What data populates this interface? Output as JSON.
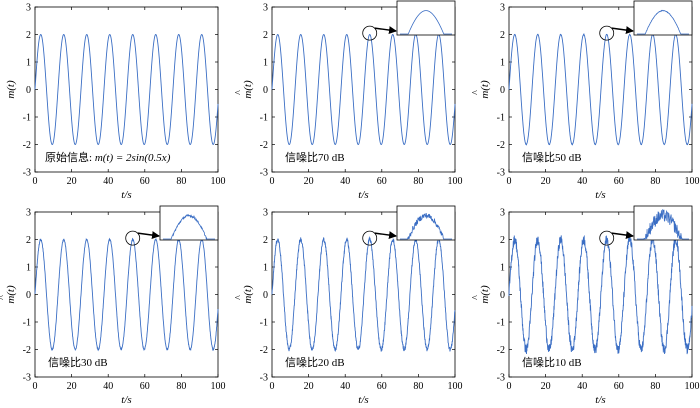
{
  "chart_data": [
    {
      "type": "line",
      "panel": "top-left",
      "ylabel": "m(t)",
      "xlabel": "t/s",
      "xlim": [
        0,
        100
      ],
      "ylim": [
        -3,
        3
      ],
      "xticks": [
        "0",
        "20",
        "40",
        "60",
        "80",
        "100"
      ],
      "yticks": [
        "3",
        "2",
        "1",
        "0",
        "-1",
        "-2",
        "-3"
      ],
      "annotation_prefix": "原始信息:",
      "annotation_formula": "m(t) = 2sin(0.5x)",
      "amplitude": 2,
      "angular_frequency": 0.5,
      "noise_level": 0,
      "series_color": "#3b6ec4",
      "has_inset": false
    },
    {
      "type": "line",
      "panel": "top-middle",
      "ylabel": "m(t)",
      "ylabel_hat": "^",
      "xlabel": "t/s",
      "xlim": [
        0,
        100
      ],
      "ylim": [
        -3,
        3
      ],
      "xticks": [
        "0",
        "20",
        "40",
        "60",
        "80",
        "100"
      ],
      "yticks": [
        "3",
        "2",
        "1",
        "0",
        "-1",
        "-2",
        "-3"
      ],
      "annotation": "信噪比70 dB",
      "amplitude": 2,
      "angular_frequency": 0.5,
      "noise_level": 0,
      "series_color": "#3b6ec4",
      "has_inset": true
    },
    {
      "type": "line",
      "panel": "top-right",
      "ylabel": "m(t)",
      "ylabel_hat": "^",
      "xlabel": "t/s",
      "xlim": [
        0,
        100
      ],
      "ylim": [
        -3,
        3
      ],
      "xticks": [
        "0",
        "20",
        "40",
        "60",
        "80",
        "100"
      ],
      "yticks": [
        "3",
        "2",
        "1",
        "0",
        "-1",
        "-2",
        "-3"
      ],
      "annotation": "信噪比50 dB",
      "amplitude": 2,
      "angular_frequency": 0.5,
      "noise_level": 0.01,
      "series_color": "#3b6ec4",
      "has_inset": true
    },
    {
      "type": "line",
      "panel": "bottom-left",
      "ylabel": "m(t)",
      "ylabel_hat": "^",
      "xlabel": "t/s",
      "xlim": [
        0,
        100
      ],
      "ylim": [
        -3,
        3
      ],
      "xticks": [
        "0",
        "20",
        "40",
        "60",
        "80",
        "100"
      ],
      "yticks": [
        "3",
        "2",
        "1",
        "0",
        "-1",
        "-2",
        "-3"
      ],
      "annotation": "信噪比30 dB",
      "amplitude": 2,
      "angular_frequency": 0.5,
      "noise_level": 0.03,
      "series_color": "#3b6ec4",
      "has_inset": true
    },
    {
      "type": "line",
      "panel": "bottom-middle",
      "ylabel": "m(t)",
      "ylabel_hat": "^",
      "xlabel": "t/s",
      "xlim": [
        0,
        100
      ],
      "ylim": [
        -3,
        3
      ],
      "xticks": [
        "0",
        "20",
        "40",
        "60",
        "80",
        "100"
      ],
      "yticks": [
        "3",
        "2",
        "1",
        "0",
        "-1",
        "-2",
        "-3"
      ],
      "annotation": "信噪比20 dB",
      "amplitude": 2,
      "angular_frequency": 0.5,
      "noise_level": 0.08,
      "series_color": "#3b6ec4",
      "has_inset": true
    },
    {
      "type": "line",
      "panel": "bottom-right",
      "ylabel": "m(t)",
      "ylabel_hat": "^",
      "xlabel": "t/s",
      "xlim": [
        0,
        100
      ],
      "ylim": [
        -3,
        3
      ],
      "xticks": [
        "0",
        "20",
        "40",
        "60",
        "80",
        "100"
      ],
      "yticks": [
        "3",
        "2",
        "1",
        "0",
        "-1",
        "-2",
        "-3"
      ],
      "annotation": "信噪比10 dB",
      "amplitude": 2,
      "angular_frequency": 0.5,
      "noise_level": 0.18,
      "series_color": "#3b6ec4",
      "has_inset": true
    }
  ]
}
